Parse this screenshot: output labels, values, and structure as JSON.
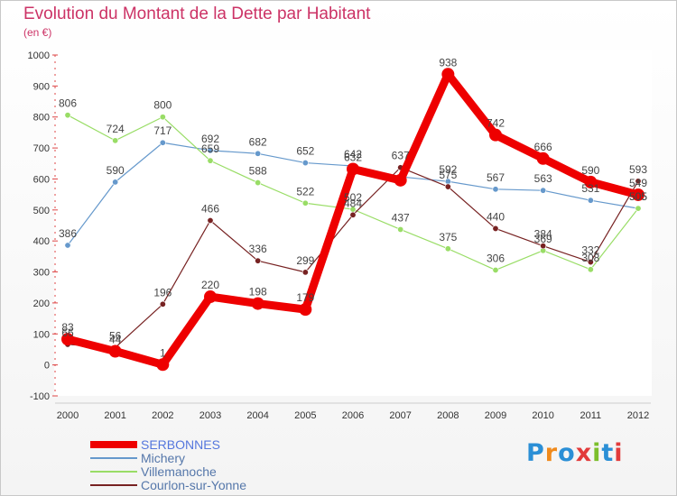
{
  "header": {
    "title": "Evolution du Montant de la Dette par Habitant",
    "subtitle": "(en €)"
  },
  "brand": {
    "text": "Proxiti",
    "letter_colors": [
      "#2b8fd6",
      "#f08a1c",
      "#2b8fd6",
      "#e23b3b",
      "#7cbf2b",
      "#2b8fd6",
      "#e23b3b"
    ]
  },
  "chart_data": {
    "type": "line",
    "x": [
      "2000",
      "2001",
      "2002",
      "2003",
      "2004",
      "2005",
      "2006",
      "2007",
      "2008",
      "2009",
      "2010",
      "2011",
      "2012"
    ],
    "ylim": [
      -100,
      1000
    ],
    "yticks": [
      -100,
      0,
      100,
      200,
      300,
      400,
      500,
      600,
      700,
      800,
      900,
      1000
    ],
    "grid": false,
    "legend_position": "bottom-left",
    "series": [
      {
        "name": "SERBONNES",
        "color": "#ee0000",
        "thick": true,
        "values": [
          83,
          44,
          1,
          220,
          198,
          179,
          632,
          596,
          938,
          742,
          666,
          590,
          549
        ],
        "labels": [
          "83",
          "44",
          "1",
          "220",
          "198",
          "179",
          "632",
          "",
          "938",
          "742",
          "666",
          "590",
          "549"
        ]
      },
      {
        "name": "Michery",
        "color": "#6699cc",
        "values": [
          386,
          590,
          717,
          692,
          682,
          652,
          642,
          607,
          592,
          567,
          563,
          531,
          505
        ],
        "labels": [
          "386",
          "590",
          "717",
          "692",
          "682",
          "652",
          "642",
          "",
          "592",
          "567",
          "563",
          "531",
          "505"
        ]
      },
      {
        "name": "Villemanoche",
        "color": "#99dd66",
        "values": [
          806,
          724,
          800,
          659,
          588,
          522,
          502,
          437,
          375,
          306,
          369,
          308,
          505
        ],
        "labels": [
          "806",
          "724",
          "800",
          "659",
          "588",
          "522",
          "502",
          "437",
          "375",
          "306",
          "369",
          "308",
          "505"
        ]
      },
      {
        "name": "Courlon-sur-Yonne",
        "color": "#772222",
        "values": [
          66,
          56,
          196,
          466,
          336,
          299,
          484,
          637,
          575,
          440,
          384,
          332,
          593
        ],
        "labels": [
          "66",
          "56",
          "196",
          "466",
          "336",
          "299",
          "484",
          "637",
          "575",
          "440",
          "384",
          "332",
          "593"
        ]
      }
    ]
  }
}
